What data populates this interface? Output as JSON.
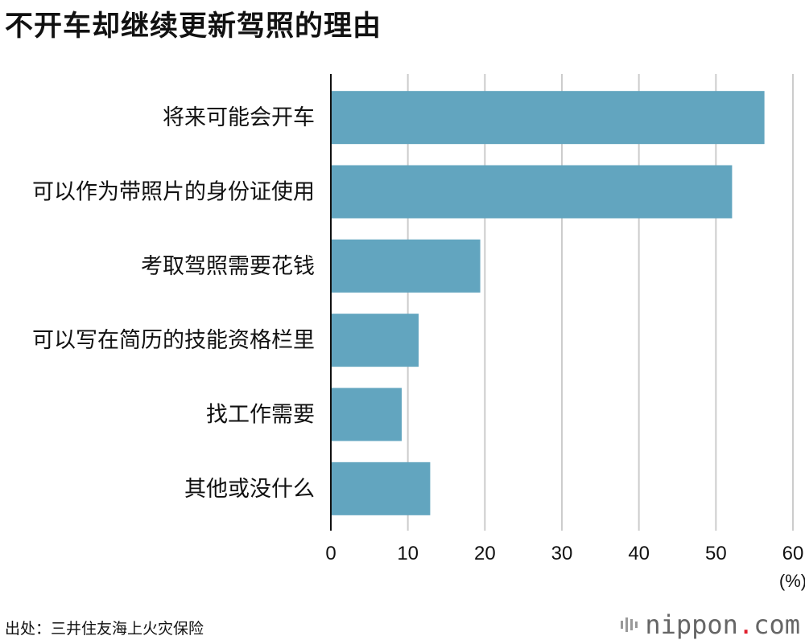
{
  "title": "不开车却继续更新驾照的理由",
  "source": "出处：三井住友海上火灾保险",
  "logo": {
    "name": "nippon",
    "dot": ".",
    "tld": "com"
  },
  "colors": {
    "bar": "#62a5bf",
    "grid": "#cccccc",
    "axis": "#111111"
  },
  "chart_data": {
    "type": "bar",
    "orientation": "horizontal",
    "title": "不开车却继续更新驾照的理由",
    "categories": [
      "将来可能会开车",
      "可以作为带照片的身份证使用",
      "考取驾照需要花钱",
      "可以写在简历的技能资格栏里",
      "找工作需要",
      "其他或没什么"
    ],
    "values": [
      56.3,
      52.1,
      19.4,
      11.4,
      9.2,
      12.9
    ],
    "xlim": [
      0,
      60
    ],
    "xticks": [
      0,
      10,
      20,
      30,
      40,
      50,
      60
    ],
    "unit_label": "(%)",
    "grid": true,
    "legend": "none"
  }
}
